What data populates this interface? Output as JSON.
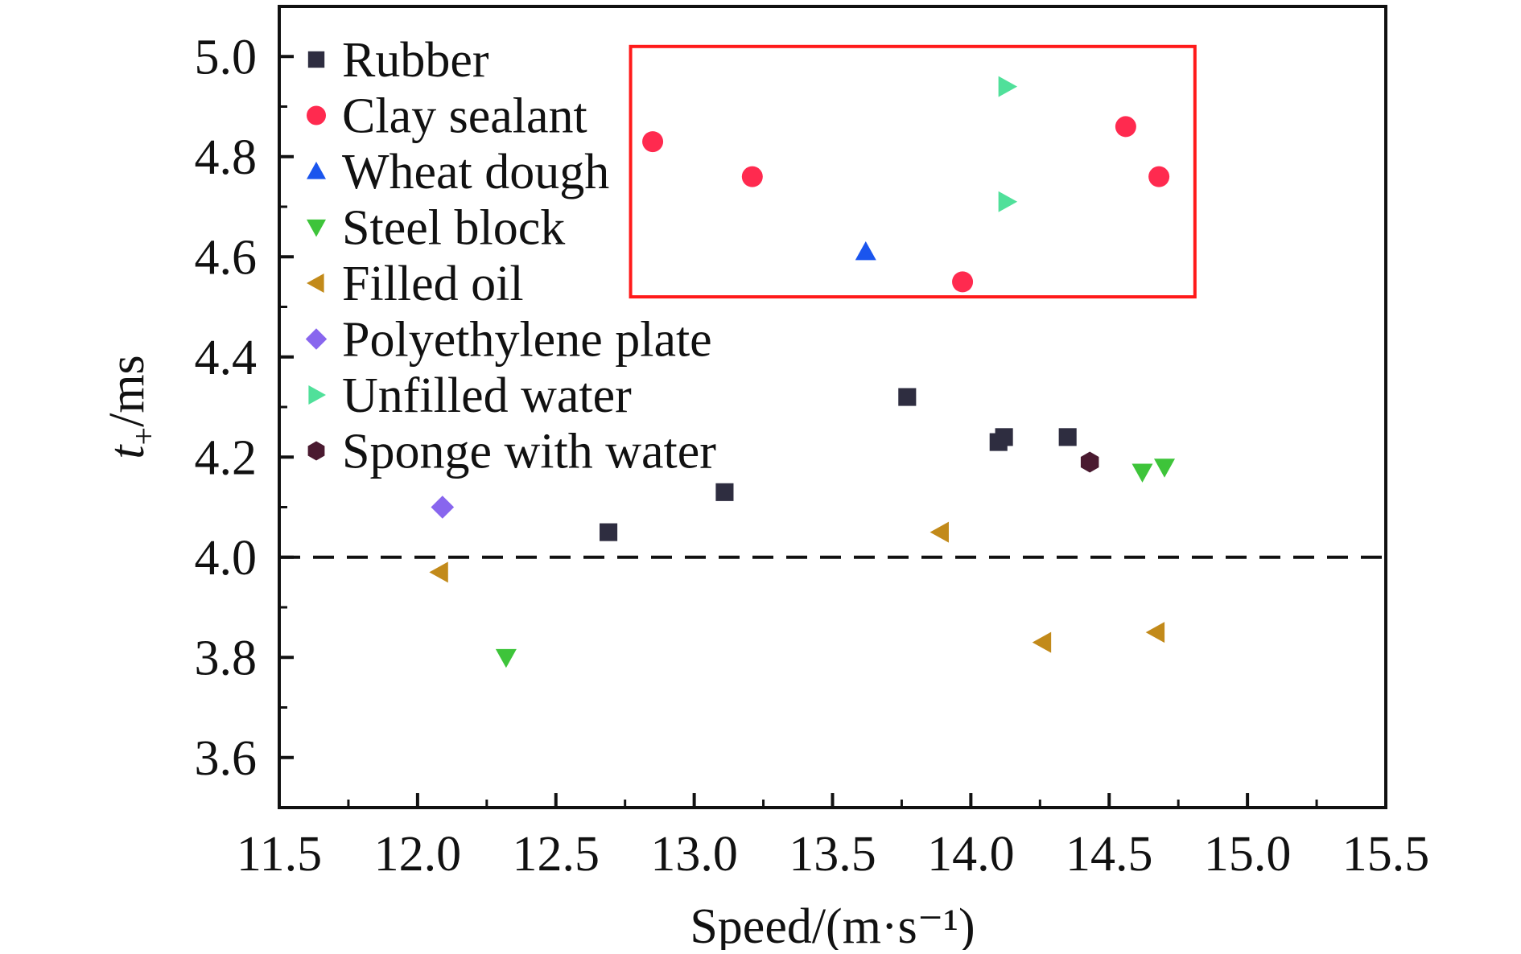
{
  "chart_data": {
    "type": "scatter",
    "xlabel": "Speed/(m·s⁻¹)",
    "ylabel": "t+/ms",
    "ylabel_main": "t",
    "ylabel_sub": "+",
    "ylabel_rest": "/ms",
    "xlim": [
      11.5,
      15.5
    ],
    "ylim": [
      3.5,
      5.1
    ],
    "x_ticks": [
      "11.5",
      "12.0",
      "12.5",
      "13.0",
      "13.5",
      "14.0",
      "14.5",
      "15.0",
      "15.5"
    ],
    "y_ticks": [
      "3.6",
      "3.8",
      "4.0",
      "4.2",
      "4.4",
      "4.6",
      "4.8",
      "5.0"
    ],
    "grid": false,
    "legend_position": "top-left",
    "reference_line": {
      "y": 4.0,
      "style": "dashed"
    },
    "highlight_box": {
      "x": [
        12.77,
        14.81
      ],
      "y": [
        4.52,
        5.02
      ],
      "color": "#ff1a1a"
    },
    "series": [
      {
        "name": "Rubber",
        "marker": "square",
        "color": "#2e2d40",
        "points": [
          [
            12.69,
            4.05
          ],
          [
            13.11,
            4.13
          ],
          [
            13.77,
            4.32
          ],
          [
            14.1,
            4.23
          ],
          [
            14.12,
            4.24
          ],
          [
            14.35,
            4.24
          ]
        ]
      },
      {
        "name": "Clay sealant",
        "marker": "circle",
        "color": "#ff2a4f",
        "points": [
          [
            12.85,
            4.83
          ],
          [
            13.21,
            4.76
          ],
          [
            13.97,
            4.55
          ],
          [
            14.56,
            4.86
          ],
          [
            14.68,
            4.76
          ]
        ]
      },
      {
        "name": "Wheat dough",
        "marker": "triangle-up",
        "color": "#1a55ee",
        "points": [
          [
            13.62,
            4.61
          ]
        ]
      },
      {
        "name": "Steel block",
        "marker": "triangle-down",
        "color": "#3ec43a",
        "points": [
          [
            12.32,
            3.8
          ],
          [
            14.62,
            4.17
          ],
          [
            14.7,
            4.18
          ]
        ]
      },
      {
        "name": "Filled oil",
        "marker": "triangle-left",
        "color": "#c28a1a",
        "points": [
          [
            12.08,
            3.97
          ],
          [
            13.89,
            4.05
          ],
          [
            14.26,
            3.83
          ],
          [
            14.67,
            3.85
          ]
        ]
      },
      {
        "name": "Polyethylene plate",
        "marker": "diamond",
        "color": "#8866ee",
        "points": [
          [
            12.09,
            4.1
          ]
        ]
      },
      {
        "name": "Unfilled water",
        "marker": "triangle-right",
        "color": "#50e09a",
        "points": [
          [
            14.13,
            4.94
          ],
          [
            14.13,
            4.71
          ]
        ]
      },
      {
        "name": "Sponge with water",
        "marker": "hexagon",
        "color": "#4a1a30",
        "points": [
          [
            14.43,
            4.19
          ]
        ]
      }
    ]
  }
}
